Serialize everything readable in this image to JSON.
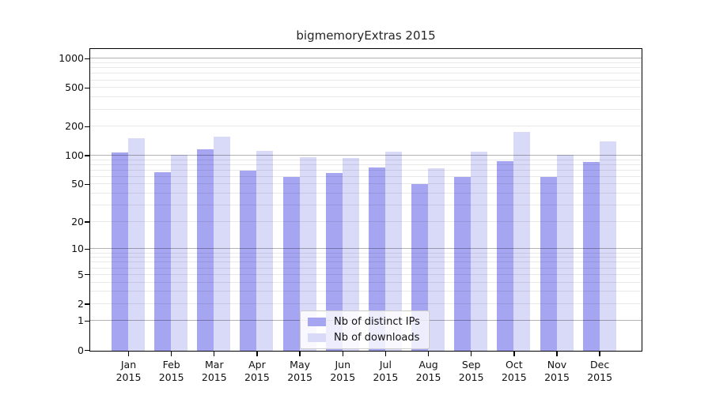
{
  "title": "bigmemoryExtras 2015",
  "y_axis": {
    "tick_values": [
      0,
      1,
      2,
      5,
      10,
      20,
      50,
      100,
      200,
      500,
      1000
    ],
    "tick_labels": [
      "0",
      "1",
      "2",
      "5",
      "10",
      "20",
      "50",
      "100",
      "200",
      "500",
      "1000"
    ]
  },
  "x_axis": {
    "months": [
      "Jan",
      "Feb",
      "Mar",
      "Apr",
      "May",
      "Jun",
      "Jul",
      "Aug",
      "Sep",
      "Oct",
      "Nov",
      "Dec"
    ],
    "year": "2015"
  },
  "legend": {
    "items": [
      {
        "label": "Nb of distinct IPs",
        "color": "#a5a5f2"
      },
      {
        "label": "Nb of downloads",
        "color": "#d9d9f8"
      }
    ]
  },
  "chart_data": {
    "type": "bar",
    "title": "bigmemoryExtras 2015",
    "categories": [
      "Jan 2015",
      "Feb 2015",
      "Mar 2015",
      "Apr 2015",
      "May 2015",
      "Jun 2015",
      "Jul 2015",
      "Aug 2015",
      "Sep 2015",
      "Oct 2015",
      "Nov 2015",
      "Dec 2015"
    ],
    "series": [
      {
        "name": "Nb of distinct IPs",
        "color": "#a5a5f2",
        "values": [
          108,
          68,
          118,
          70,
          61,
          67,
          76,
          51,
          60,
          89,
          60,
          87
        ]
      },
      {
        "name": "Nb of downloads",
        "color": "#d9d9f8",
        "values": [
          152,
          103,
          160,
          113,
          98,
          95,
          112,
          75,
          112,
          178,
          102,
          141
        ]
      }
    ],
    "yscale": "log1p",
    "yticks": [
      0,
      1,
      2,
      5,
      10,
      20,
      50,
      100,
      200,
      500,
      1000
    ],
    "ylim": [
      0,
      1300
    ],
    "grid": "horizontal major at 1/10/100/1000, minor at 2-9 per decade, drawn over bars",
    "legend_position": "lower center",
    "xlabel": "",
    "ylabel": ""
  }
}
